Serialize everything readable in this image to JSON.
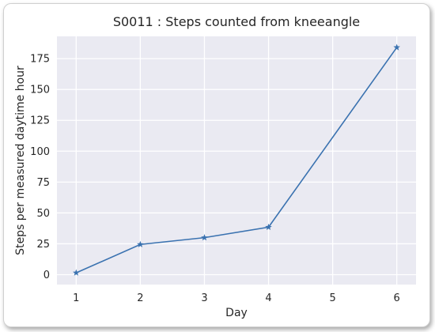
{
  "chart_data": {
    "type": "line",
    "title": "S0011 : Steps counted from kneeangle",
    "xlabel": "Day",
    "ylabel": "Steps per measured daytime hour",
    "x": [
      1,
      2,
      3,
      4,
      6
    ],
    "series": [
      {
        "values": [
          1.5,
          24.5,
          30,
          38.5,
          184
        ],
        "color": "#3a72b0",
        "marker": "star"
      }
    ],
    "xticks": [
      1,
      2,
      3,
      4,
      5,
      6
    ],
    "yticks": [
      0,
      25,
      50,
      75,
      100,
      125,
      150,
      175
    ],
    "xlim": [
      0.7,
      6.3
    ],
    "ylim": [
      -8,
      193
    ],
    "grid": true,
    "background_color": "#eaeaf2",
    "grid_color": "#ffffff"
  }
}
